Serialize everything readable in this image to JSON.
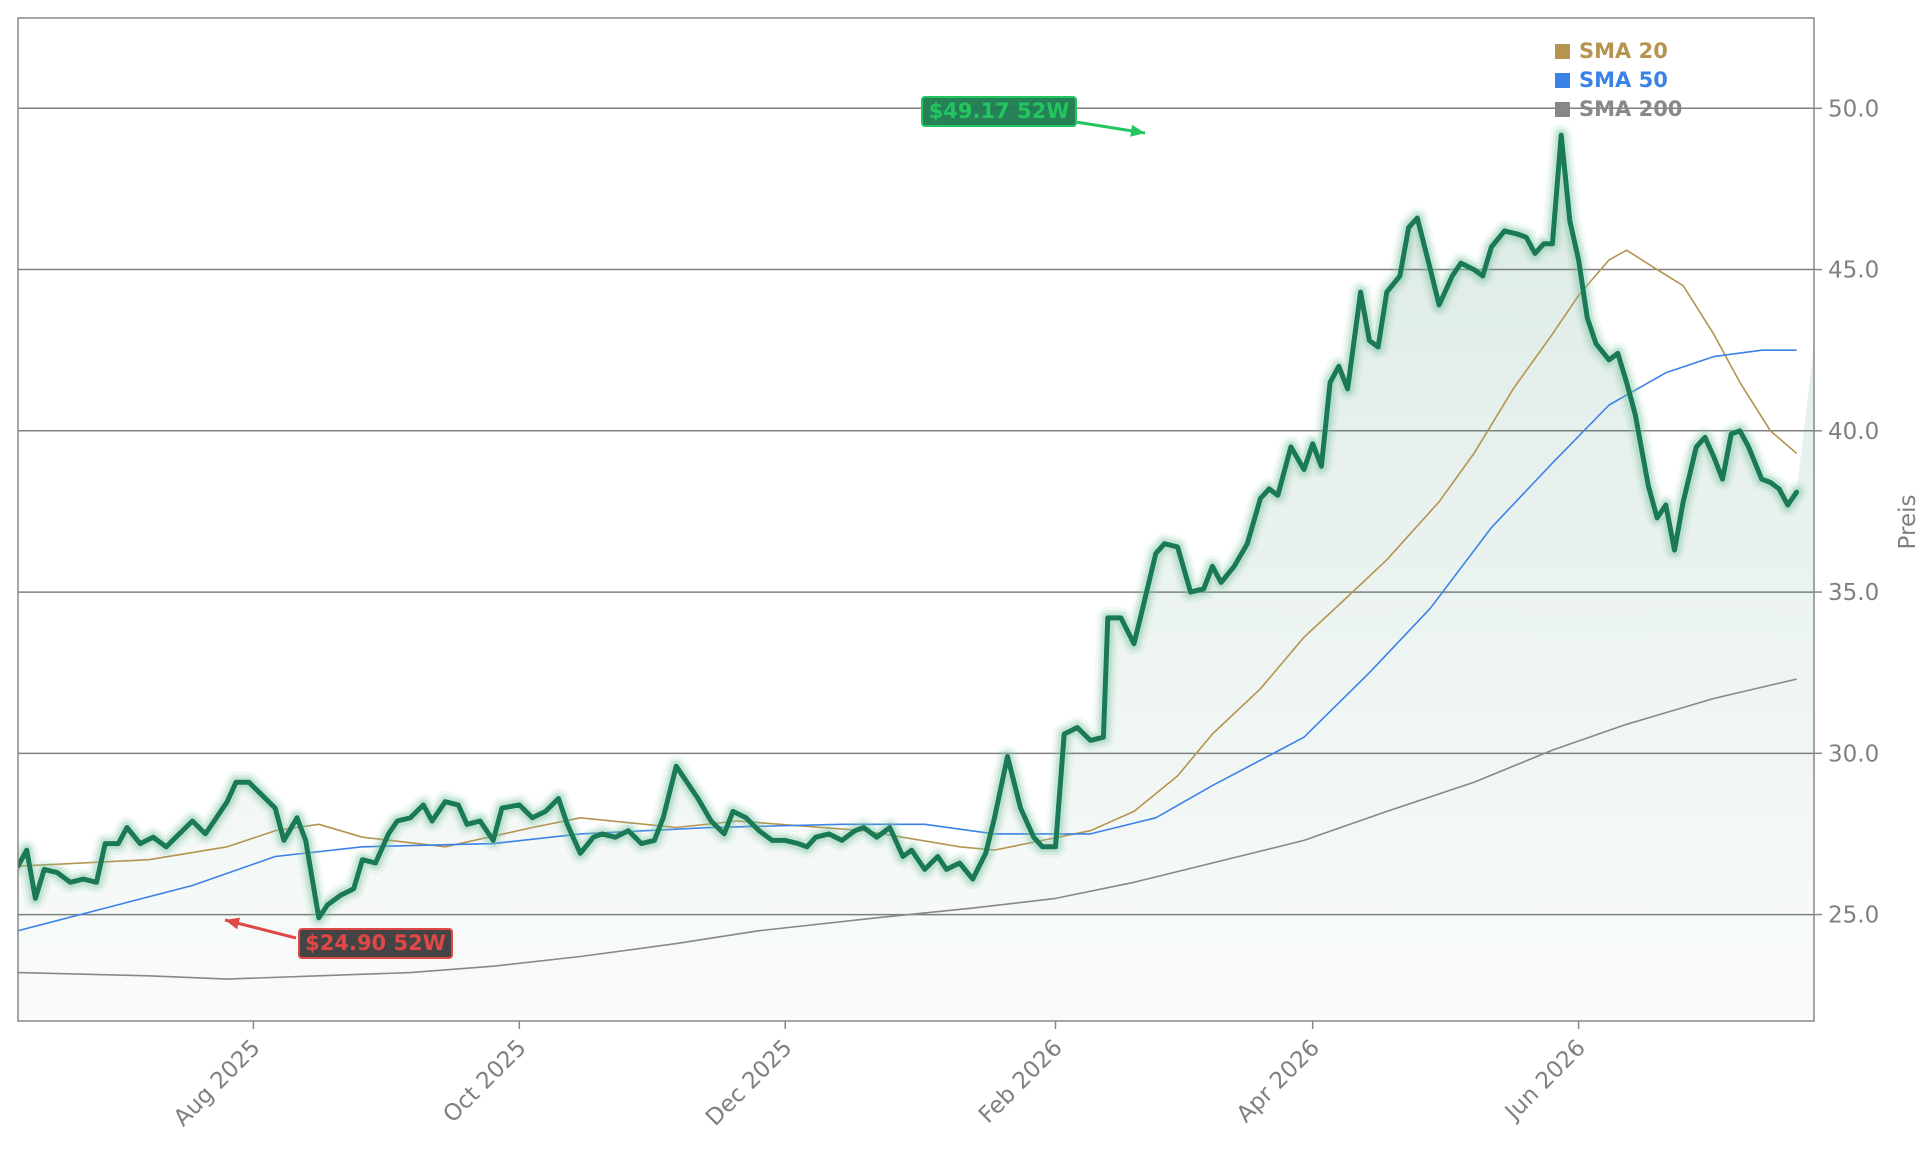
{
  "chart_data": {
    "type": "line",
    "title": "",
    "ylabel": "Preis",
    "xlabel": "",
    "ylim": [
      21.7,
      52.8
    ],
    "x_range": [
      "2025-06-08",
      "2026-07-25"
    ],
    "grid": "horizontal",
    "y_ticks": [
      "25.0",
      "30.0",
      "35.0",
      "40.0",
      "45.0",
      "50.0"
    ],
    "x_ticks": [
      {
        "date": "2025-08-01",
        "label": "Aug 2025"
      },
      {
        "date": "2025-10-01",
        "label": "Oct 2025"
      },
      {
        "date": "2025-12-01",
        "label": "Dec 2025"
      },
      {
        "date": "2026-02-01",
        "label": "Feb 2026"
      },
      {
        "date": "2026-04-01",
        "label": "Apr 2026"
      },
      {
        "date": "2026-06-01",
        "label": "Jun 2026"
      }
    ],
    "legend": {
      "placement": "top-right",
      "entries": [
        {
          "label": "SMA 20",
          "color": "#b5944f"
        },
        {
          "label": "SMA 50",
          "color": "#3b82e8"
        },
        {
          "label": "SMA 200",
          "color": "#888888"
        }
      ]
    },
    "annotations": [
      {
        "text": "$49.17 52W",
        "date": "2026-02-15",
        "value": 49.17,
        "kind": "high",
        "bg": "#1a7a4e",
        "border": "#22c55e",
        "text_color": "#22c55e"
      },
      {
        "text": "$24.90 52W",
        "date": "2025-08-07",
        "value": 24.9,
        "kind": "low",
        "bg": "#3a3a3a",
        "border": "#e04848",
        "text_color": "#e04848"
      }
    ],
    "colors": {
      "price": "#1a7a56",
      "glow": "#7fc4a4",
      "fill": "#3e8a6e",
      "grid": "#808080",
      "frame": "#888888"
    },
    "series": [
      {
        "name": "",
        "role": "price",
        "points": [
          [
            "2025-06-08",
            26.5
          ],
          [
            "2025-06-10",
            27.0
          ],
          [
            "2025-06-12",
            25.5
          ],
          [
            "2025-06-14",
            26.4
          ],
          [
            "2025-06-17",
            26.3
          ],
          [
            "2025-06-20",
            26.0
          ],
          [
            "2025-06-23",
            26.1
          ],
          [
            "2025-06-26",
            26.0
          ],
          [
            "2025-06-28",
            27.2
          ],
          [
            "2025-07-01",
            27.2
          ],
          [
            "2025-07-03",
            27.7
          ],
          [
            "2025-07-06",
            27.2
          ],
          [
            "2025-07-09",
            27.4
          ],
          [
            "2025-07-12",
            27.1
          ],
          [
            "2025-07-15",
            27.5
          ],
          [
            "2025-07-18",
            27.9
          ],
          [
            "2025-07-21",
            27.5
          ],
          [
            "2025-07-23",
            27.9
          ],
          [
            "2025-07-26",
            28.5
          ],
          [
            "2025-07-28",
            29.1
          ],
          [
            "2025-07-31",
            29.1
          ],
          [
            "2025-08-03",
            28.7
          ],
          [
            "2025-08-06",
            28.3
          ],
          [
            "2025-08-08",
            27.3
          ],
          [
            "2025-08-11",
            28.0
          ],
          [
            "2025-08-13",
            27.3
          ],
          [
            "2025-08-16",
            24.9
          ],
          [
            "2025-08-18",
            25.3
          ],
          [
            "2025-08-21",
            25.6
          ],
          [
            "2025-08-24",
            25.8
          ],
          [
            "2025-08-26",
            26.7
          ],
          [
            "2025-08-29",
            26.6
          ],
          [
            "2025-09-01",
            27.5
          ],
          [
            "2025-09-03",
            27.9
          ],
          [
            "2025-09-06",
            28.0
          ],
          [
            "2025-09-09",
            28.4
          ],
          [
            "2025-09-11",
            27.9
          ],
          [
            "2025-09-14",
            28.5
          ],
          [
            "2025-09-17",
            28.4
          ],
          [
            "2025-09-19",
            27.8
          ],
          [
            "2025-09-22",
            27.9
          ],
          [
            "2025-09-25",
            27.3
          ],
          [
            "2025-09-27",
            28.3
          ],
          [
            "2025-10-01",
            28.4
          ],
          [
            "2025-10-04",
            28.0
          ],
          [
            "2025-10-07",
            28.2
          ],
          [
            "2025-10-10",
            28.6
          ],
          [
            "2025-10-12",
            27.8
          ],
          [
            "2025-10-15",
            26.9
          ],
          [
            "2025-10-18",
            27.4
          ],
          [
            "2025-10-20",
            27.5
          ],
          [
            "2025-10-23",
            27.4
          ],
          [
            "2025-10-26",
            27.6
          ],
          [
            "2025-10-29",
            27.2
          ],
          [
            "2025-11-01",
            27.3
          ],
          [
            "2025-11-03",
            28.0
          ],
          [
            "2025-11-06",
            29.6
          ],
          [
            "2025-11-09",
            29.0
          ],
          [
            "2025-11-11",
            28.6
          ],
          [
            "2025-11-14",
            27.9
          ],
          [
            "2025-11-17",
            27.5
          ],
          [
            "2025-11-19",
            28.2
          ],
          [
            "2025-11-22",
            28.0
          ],
          [
            "2025-11-25",
            27.6
          ],
          [
            "2025-11-28",
            27.3
          ],
          [
            "2025-12-01",
            27.3
          ],
          [
            "2025-12-04",
            27.2
          ],
          [
            "2025-12-06",
            27.1
          ],
          [
            "2025-12-08",
            27.4
          ],
          [
            "2025-12-11",
            27.5
          ],
          [
            "2025-12-14",
            27.3
          ],
          [
            "2025-12-17",
            27.6
          ],
          [
            "2025-12-19",
            27.7
          ],
          [
            "2025-12-22",
            27.4
          ],
          [
            "2025-12-25",
            27.7
          ],
          [
            "2025-12-28",
            26.8
          ],
          [
            "2025-12-30",
            27.0
          ],
          [
            "2026-01-02",
            26.4
          ],
          [
            "2026-01-05",
            26.8
          ],
          [
            "2026-01-07",
            26.4
          ],
          [
            "2026-01-10",
            26.6
          ],
          [
            "2026-01-13",
            26.1
          ],
          [
            "2026-01-16",
            26.9
          ],
          [
            "2026-01-18",
            28.0
          ],
          [
            "2026-01-21",
            29.9
          ],
          [
            "2026-01-24",
            28.3
          ],
          [
            "2026-01-27",
            27.4
          ],
          [
            "2026-01-29",
            27.1
          ],
          [
            "2026-02-01",
            27.1
          ],
          [
            "2026-02-03",
            30.6
          ],
          [
            "2026-02-06",
            30.8
          ],
          [
            "2026-02-09",
            30.4
          ],
          [
            "2026-02-12",
            30.5
          ],
          [
            "2026-02-13",
            34.2
          ],
          [
            "2026-02-16",
            34.2
          ],
          [
            "2026-02-19",
            33.4
          ],
          [
            "2026-02-21",
            34.5
          ],
          [
            "2026-02-24",
            36.2
          ],
          [
            "2026-02-26",
            36.5
          ],
          [
            "2026-03-01",
            36.4
          ],
          [
            "2026-03-04",
            35.0
          ],
          [
            "2026-03-07",
            35.1
          ],
          [
            "2026-03-09",
            35.8
          ],
          [
            "2026-03-11",
            35.3
          ],
          [
            "2026-03-14",
            35.8
          ],
          [
            "2026-03-17",
            36.5
          ],
          [
            "2026-03-20",
            37.9
          ],
          [
            "2026-03-22",
            38.2
          ],
          [
            "2026-03-24",
            38.0
          ],
          [
            "2026-03-27",
            39.5
          ],
          [
            "2026-03-30",
            38.8
          ],
          [
            "2026-04-01",
            39.6
          ],
          [
            "2026-04-03",
            38.9
          ],
          [
            "2026-04-05",
            41.5
          ],
          [
            "2026-04-07",
            42.0
          ],
          [
            "2026-04-09",
            41.3
          ],
          [
            "2026-04-12",
            44.3
          ],
          [
            "2026-04-14",
            42.8
          ],
          [
            "2026-04-16",
            42.6
          ],
          [
            "2026-04-18",
            44.3
          ],
          [
            "2026-04-21",
            44.8
          ],
          [
            "2026-04-23",
            46.3
          ],
          [
            "2026-04-25",
            46.6
          ],
          [
            "2026-04-28",
            45.0
          ],
          [
            "2026-04-30",
            43.9
          ],
          [
            "2026-05-03",
            44.8
          ],
          [
            "2026-05-05",
            45.2
          ],
          [
            "2026-05-08",
            45.0
          ],
          [
            "2026-05-10",
            44.8
          ],
          [
            "2026-05-12",
            45.7
          ],
          [
            "2026-05-15",
            46.2
          ],
          [
            "2026-05-18",
            46.1
          ],
          [
            "2026-05-20",
            46.0
          ],
          [
            "2026-05-22",
            45.5
          ],
          [
            "2026-05-24",
            45.8
          ],
          [
            "2026-05-26",
            45.8
          ],
          [
            "2026-05-28",
            49.17
          ],
          [
            "2026-05-30",
            46.5
          ],
          [
            "2026-06-01",
            45.3
          ],
          [
            "2026-06-03",
            43.5
          ],
          [
            "2026-06-05",
            42.7
          ],
          [
            "2026-06-08",
            42.2
          ],
          [
            "2026-06-10",
            42.4
          ],
          [
            "2026-06-12",
            41.5
          ],
          [
            "2026-06-14",
            40.5
          ],
          [
            "2026-06-17",
            38.3
          ],
          [
            "2026-06-19",
            37.3
          ],
          [
            "2026-06-21",
            37.7
          ],
          [
            "2026-06-23",
            36.3
          ],
          [
            "2026-06-25",
            37.8
          ],
          [
            "2026-06-28",
            39.5
          ],
          [
            "2026-06-30",
            39.8
          ],
          [
            "2026-07-02",
            39.2
          ],
          [
            "2026-07-04",
            38.5
          ],
          [
            "2026-07-06",
            39.9
          ],
          [
            "2026-07-08",
            40.0
          ],
          [
            "2026-07-10",
            39.5
          ],
          [
            "2026-07-13",
            38.5
          ],
          [
            "2026-07-15",
            38.4
          ],
          [
            "2026-07-17",
            38.2
          ],
          [
            "2026-07-19",
            37.7
          ],
          [
            "2026-07-21",
            38.1
          ]
        ]
      },
      {
        "name": "SMA 20",
        "color": "#b5944f",
        "points": [
          [
            "2025-06-08",
            26.5
          ],
          [
            "2025-07-08",
            26.7
          ],
          [
            "2025-07-26",
            27.1
          ],
          [
            "2025-08-06",
            27.6
          ],
          [
            "2025-08-16",
            27.8
          ],
          [
            "2025-08-26",
            27.4
          ],
          [
            "2025-09-14",
            27.1
          ],
          [
            "2025-10-04",
            27.7
          ],
          [
            "2025-10-15",
            28.0
          ],
          [
            "2025-11-06",
            27.7
          ],
          [
            "2025-11-20",
            27.9
          ],
          [
            "2025-12-19",
            27.6
          ],
          [
            "2026-01-10",
            27.1
          ],
          [
            "2026-01-18",
            27.0
          ],
          [
            "2026-01-29",
            27.3
          ],
          [
            "2026-02-09",
            27.6
          ],
          [
            "2026-02-19",
            28.2
          ],
          [
            "2026-03-01",
            29.3
          ],
          [
            "2026-03-09",
            30.6
          ],
          [
            "2026-03-20",
            32.0
          ],
          [
            "2026-03-30",
            33.6
          ],
          [
            "2026-04-07",
            34.6
          ],
          [
            "2026-04-18",
            36.0
          ],
          [
            "2026-04-30",
            37.8
          ],
          [
            "2026-05-08",
            39.3
          ],
          [
            "2026-05-17",
            41.3
          ],
          [
            "2026-05-26",
            43.0
          ],
          [
            "2026-06-01",
            44.2
          ],
          [
            "2026-06-08",
            45.3
          ],
          [
            "2026-06-12",
            45.6
          ],
          [
            "2026-06-19",
            45.0
          ],
          [
            "2026-06-25",
            44.5
          ],
          [
            "2026-07-02",
            43.0
          ],
          [
            "2026-07-08",
            41.5
          ],
          [
            "2026-07-15",
            40.0
          ],
          [
            "2026-07-21",
            39.3
          ]
        ]
      },
      {
        "name": "SMA 50",
        "color": "#3b82e8",
        "points": [
          [
            "2025-06-08",
            24.5
          ],
          [
            "2025-06-28",
            25.2
          ],
          [
            "2025-07-18",
            25.9
          ],
          [
            "2025-08-06",
            26.8
          ],
          [
            "2025-08-26",
            27.1
          ],
          [
            "2025-09-25",
            27.2
          ],
          [
            "2025-10-15",
            27.5
          ],
          [
            "2025-11-14",
            27.7
          ],
          [
            "2025-12-14",
            27.8
          ],
          [
            "2026-01-02",
            27.8
          ],
          [
            "2026-01-18",
            27.5
          ],
          [
            "2026-02-09",
            27.5
          ],
          [
            "2026-02-24",
            28.0
          ],
          [
            "2026-03-09",
            29.0
          ],
          [
            "2026-03-30",
            30.5
          ],
          [
            "2026-04-14",
            32.5
          ],
          [
            "2026-04-28",
            34.5
          ],
          [
            "2026-05-12",
            37.0
          ],
          [
            "2026-05-26",
            39.0
          ],
          [
            "2026-06-08",
            40.8
          ],
          [
            "2026-06-21",
            41.8
          ],
          [
            "2026-07-02",
            42.3
          ],
          [
            "2026-07-13",
            42.5
          ],
          [
            "2026-07-21",
            42.5
          ]
        ]
      },
      {
        "name": "SMA 200",
        "color": "#888888",
        "points": [
          [
            "2025-06-08",
            23.2
          ],
          [
            "2025-07-08",
            23.1
          ],
          [
            "2025-07-26",
            23.0
          ],
          [
            "2025-08-16",
            23.1
          ],
          [
            "2025-09-06",
            23.2
          ],
          [
            "2025-09-25",
            23.4
          ],
          [
            "2025-10-15",
            23.7
          ],
          [
            "2025-11-06",
            24.1
          ],
          [
            "2025-11-25",
            24.5
          ],
          [
            "2025-12-22",
            24.9
          ],
          [
            "2026-01-13",
            25.2
          ],
          [
            "2026-02-01",
            25.5
          ],
          [
            "2026-02-19",
            26.0
          ],
          [
            "2026-03-09",
            26.6
          ],
          [
            "2026-03-30",
            27.3
          ],
          [
            "2026-04-18",
            28.2
          ],
          [
            "2026-05-08",
            29.1
          ],
          [
            "2026-05-26",
            30.1
          ],
          [
            "2026-06-12",
            30.9
          ],
          [
            "2026-07-02",
            31.7
          ],
          [
            "2026-07-21",
            32.3
          ]
        ]
      }
    ]
  }
}
